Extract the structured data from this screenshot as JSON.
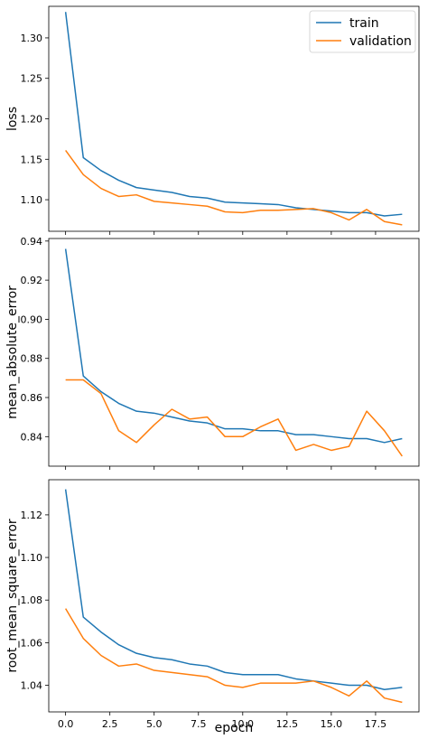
{
  "chart_data": [
    {
      "type": "line",
      "title": "",
      "xlabel": "",
      "ylabel": "loss",
      "xlim": [
        -0.95,
        19.95
      ],
      "ylim": [
        1.061,
        1.339
      ],
      "xticks": [
        0,
        2.5,
        5,
        7.5,
        10,
        12.5,
        15,
        17.5
      ],
      "xtick_labels_visible": false,
      "yticks": [
        1.1,
        1.15,
        1.2,
        1.25,
        1.3
      ],
      "ytick_labels": [
        "1.10",
        "1.15",
        "1.20",
        "1.25",
        "1.30"
      ],
      "legend": {
        "placement": "upper-right",
        "entries": [
          "train",
          "validation"
        ]
      },
      "x": [
        0,
        1,
        2,
        3,
        4,
        5,
        6,
        7,
        8,
        9,
        10,
        11,
        12,
        13,
        14,
        15,
        16,
        17,
        18,
        19
      ],
      "series": [
        {
          "name": "train",
          "color": "#1f77b4",
          "values": [
            1.332,
            1.152,
            1.136,
            1.124,
            1.115,
            1.112,
            1.109,
            1.104,
            1.102,
            1.097,
            1.096,
            1.095,
            1.094,
            1.09,
            1.088,
            1.086,
            1.084,
            1.084,
            1.08,
            1.082
          ]
        },
        {
          "name": "validation",
          "color": "#ff7f0e",
          "values": [
            1.161,
            1.131,
            1.114,
            1.104,
            1.106,
            1.098,
            1.096,
            1.094,
            1.092,
            1.085,
            1.084,
            1.087,
            1.087,
            1.088,
            1.089,
            1.084,
            1.075,
            1.088,
            1.073,
            1.069
          ]
        }
      ]
    },
    {
      "type": "line",
      "title": "",
      "xlabel": "",
      "ylabel": "mean_absolute_error",
      "xlim": [
        -0.95,
        19.95
      ],
      "ylim": [
        0.8249,
        0.9413
      ],
      "xticks": [
        0,
        2.5,
        5,
        7.5,
        10,
        12.5,
        15,
        17.5
      ],
      "xtick_labels_visible": false,
      "yticks": [
        0.84,
        0.86,
        0.88,
        0.9,
        0.92,
        0.94
      ],
      "ytick_labels": [
        "0.84",
        "0.86",
        "0.88",
        "0.90",
        "0.92",
        "0.94"
      ],
      "x": [
        0,
        1,
        2,
        3,
        4,
        5,
        6,
        7,
        8,
        9,
        10,
        11,
        12,
        13,
        14,
        15,
        16,
        17,
        18,
        19
      ],
      "series": [
        {
          "name": "train",
          "color": "#1f77b4",
          "values": [
            0.936,
            0.871,
            0.863,
            0.857,
            0.853,
            0.852,
            0.85,
            0.848,
            0.847,
            0.844,
            0.844,
            0.843,
            0.843,
            0.841,
            0.841,
            0.84,
            0.839,
            0.839,
            0.837,
            0.839
          ]
        },
        {
          "name": "validation",
          "color": "#ff7f0e",
          "values": [
            0.869,
            0.869,
            0.862,
            0.843,
            0.837,
            0.846,
            0.854,
            0.849,
            0.85,
            0.84,
            0.84,
            0.845,
            0.849,
            0.833,
            0.836,
            0.833,
            0.835,
            0.853,
            0.843,
            0.83
          ]
        }
      ]
    },
    {
      "type": "line",
      "title": "",
      "xlabel": "epoch",
      "ylabel": "root_mean_square_error",
      "xlim": [
        -0.95,
        19.95
      ],
      "ylim": [
        1.0275,
        1.1365
      ],
      "xticks": [
        0,
        2.5,
        5,
        7.5,
        10,
        12.5,
        15,
        17.5
      ],
      "xtick_labels": [
        "0.0",
        "2.5",
        "5.0",
        "7.5",
        "10.0",
        "12.5",
        "15.0",
        "17.5"
      ],
      "xtick_labels_visible": true,
      "yticks": [
        1.04,
        1.06,
        1.08,
        1.1,
        1.12
      ],
      "ytick_labels": [
        "1.04",
        "1.06",
        "1.08",
        "1.10",
        "1.12"
      ],
      "x": [
        0,
        1,
        2,
        3,
        4,
        5,
        6,
        7,
        8,
        9,
        10,
        11,
        12,
        13,
        14,
        15,
        16,
        17,
        18,
        19
      ],
      "series": [
        {
          "name": "train",
          "color": "#1f77b4",
          "values": [
            1.132,
            1.072,
            1.065,
            1.059,
            1.055,
            1.053,
            1.052,
            1.05,
            1.049,
            1.046,
            1.045,
            1.045,
            1.045,
            1.043,
            1.042,
            1.041,
            1.04,
            1.04,
            1.038,
            1.039
          ]
        },
        {
          "name": "validation",
          "color": "#ff7f0e",
          "values": [
            1.076,
            1.062,
            1.054,
            1.049,
            1.05,
            1.047,
            1.046,
            1.045,
            1.044,
            1.04,
            1.039,
            1.041,
            1.041,
            1.041,
            1.042,
            1.039,
            1.035,
            1.042,
            1.034,
            1.032
          ]
        }
      ]
    }
  ]
}
